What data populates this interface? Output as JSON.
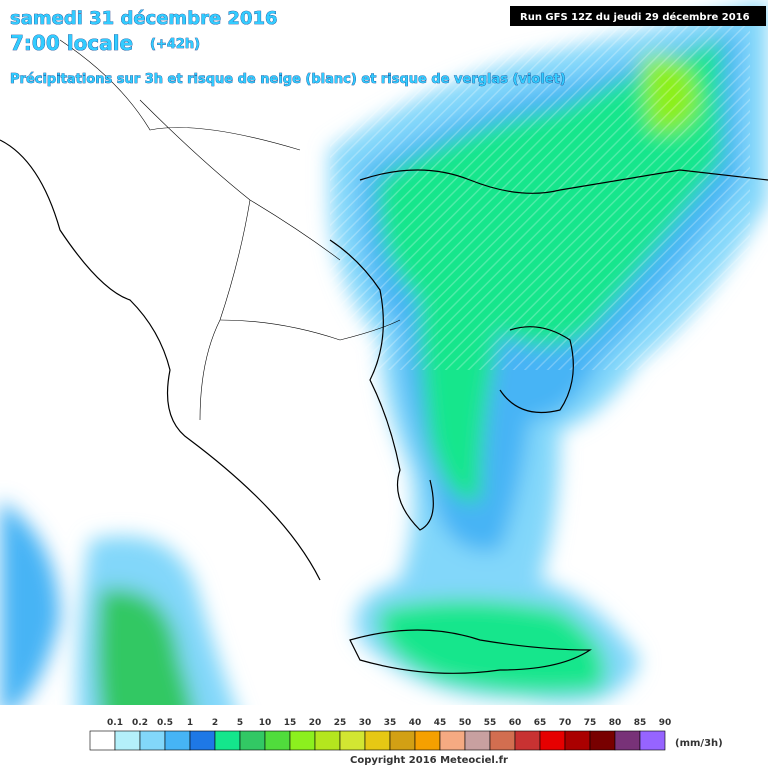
{
  "header": {
    "title": "samedi 31 décembre 2016",
    "time": "7:00 locale",
    "lead": "(+42h)",
    "subtitle": "Précipitations sur 3h et risque de neige (blanc) et risque de verglas (violet)"
  },
  "run": "Run GFS 12Z du jeudi 29 décembre 2016",
  "legend": {
    "labels": [
      0.1,
      0.2,
      0.5,
      1,
      2,
      5,
      10,
      15,
      20,
      25,
      30,
      35,
      40,
      45,
      50,
      55,
      60,
      65,
      70,
      75,
      80,
      85,
      90
    ],
    "colors": [
      "#ffffff",
      "#b4f0fa",
      "#82d7fa",
      "#46b4f5",
      "#1e78e6",
      "#14e68c",
      "#32c864",
      "#50dc3c",
      "#8cf01e",
      "#b4e61e",
      "#d2e632",
      "#e6c814",
      "#d2a014",
      "#f5a000",
      "#f5aa82",
      "#c8a0a0",
      "#d26e50",
      "#c83232",
      "#e60000",
      "#aa0000",
      "#780000",
      "#783278",
      "#9664ff"
    ],
    "unit": "(mm/3h)"
  },
  "copyright": "Copyright 2016 Meteociel.fr"
}
